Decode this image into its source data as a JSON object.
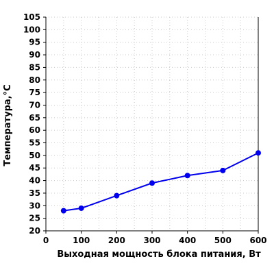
{
  "chart_data": {
    "type": "line",
    "title": "",
    "xlabel": "Выходная мощность блока питания, Вт",
    "ylabel": "Температура,°C",
    "xlim": [
      0,
      600
    ],
    "ylim": [
      20,
      105
    ],
    "x_ticks": [
      0,
      100,
      200,
      300,
      400,
      500,
      600
    ],
    "y_ticks": [
      20,
      25,
      30,
      35,
      40,
      45,
      50,
      55,
      60,
      65,
      70,
      75,
      80,
      85,
      90,
      95,
      100,
      105
    ],
    "grid": true,
    "legend": "none",
    "series": [
      {
        "color": "#0000ee",
        "x": [
          50,
          100,
          200,
          300,
          400,
          500,
          600
        ],
        "y": [
          28,
          29,
          34,
          39,
          42,
          44,
          51
        ]
      }
    ]
  }
}
